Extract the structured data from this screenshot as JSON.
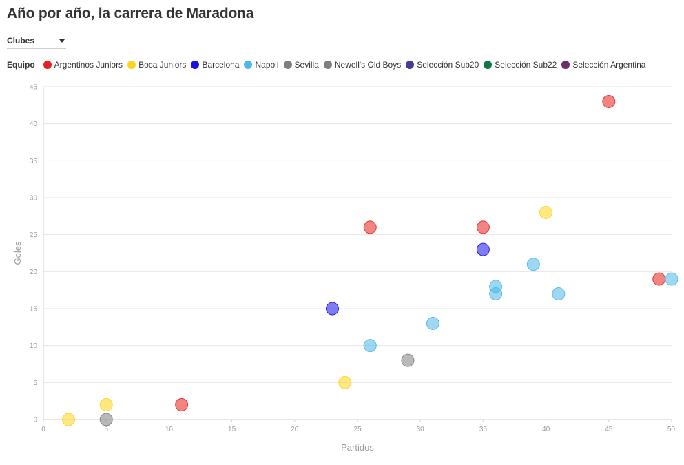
{
  "header": {
    "title": "Año por año, la carrera de Maradona"
  },
  "filter": {
    "selected": "Clubes"
  },
  "legend": {
    "title": "Equipo",
    "items": [
      {
        "label": "Argentinos Juniors",
        "color": "#e8211f"
      },
      {
        "label": "Boca Juniors",
        "color": "#ffd31a"
      },
      {
        "label": "Barcelona",
        "color": "#1810e6"
      },
      {
        "label": "Napoli",
        "color": "#4db6e8"
      },
      {
        "label": "Sevilla",
        "color": "#7f7f7f"
      },
      {
        "label": "Newell's Old Boys",
        "color": "#7f7f7f"
      },
      {
        "label": "Selección Sub20",
        "color": "#4b3b8f"
      },
      {
        "label": "Selección Sub22",
        "color": "#0e7a4a"
      },
      {
        "label": "Selección Argentina",
        "color": "#6b2e6e"
      }
    ]
  },
  "chart_data": {
    "type": "scatter",
    "xlabel": "Partidos",
    "ylabel": "Goles",
    "xlim": [
      0,
      50
    ],
    "ylim": [
      0,
      45
    ],
    "xticks": [
      0,
      5,
      10,
      15,
      20,
      25,
      30,
      35,
      40,
      45,
      50
    ],
    "yticks": [
      0,
      5,
      10,
      15,
      20,
      25,
      30,
      35,
      40,
      45
    ],
    "grid": "horizontal",
    "legend_position": "top-left",
    "series": [
      {
        "name": "Argentinos Juniors",
        "color": "#e8211f",
        "points": [
          {
            "x": 11,
            "y": 2
          },
          {
            "x": 26,
            "y": 26
          },
          {
            "x": 35,
            "y": 26
          },
          {
            "x": 45,
            "y": 43
          },
          {
            "x": 49,
            "y": 19
          }
        ]
      },
      {
        "name": "Boca Juniors",
        "color": "#ffd31a",
        "points": [
          {
            "x": 2,
            "y": 0
          },
          {
            "x": 5,
            "y": 2
          },
          {
            "x": 24,
            "y": 5
          },
          {
            "x": 40,
            "y": 28
          }
        ]
      },
      {
        "name": "Barcelona",
        "color": "#1810e6",
        "points": [
          {
            "x": 23,
            "y": 15
          },
          {
            "x": 35,
            "y": 23
          }
        ]
      },
      {
        "name": "Napoli",
        "color": "#4db6e8",
        "points": [
          {
            "x": 26,
            "y": 10
          },
          {
            "x": 31,
            "y": 13
          },
          {
            "x": 36,
            "y": 17
          },
          {
            "x": 36,
            "y": 18
          },
          {
            "x": 39,
            "y": 21
          },
          {
            "x": 41,
            "y": 17
          },
          {
            "x": 50,
            "y": 19
          }
        ]
      },
      {
        "name": "Sevilla",
        "color": "#7f7f7f",
        "points": [
          {
            "x": 29,
            "y": 8
          }
        ]
      },
      {
        "name": "Newell's Old Boys",
        "color": "#7f7f7f",
        "points": [
          {
            "x": 5,
            "y": 0
          }
        ]
      }
    ]
  }
}
